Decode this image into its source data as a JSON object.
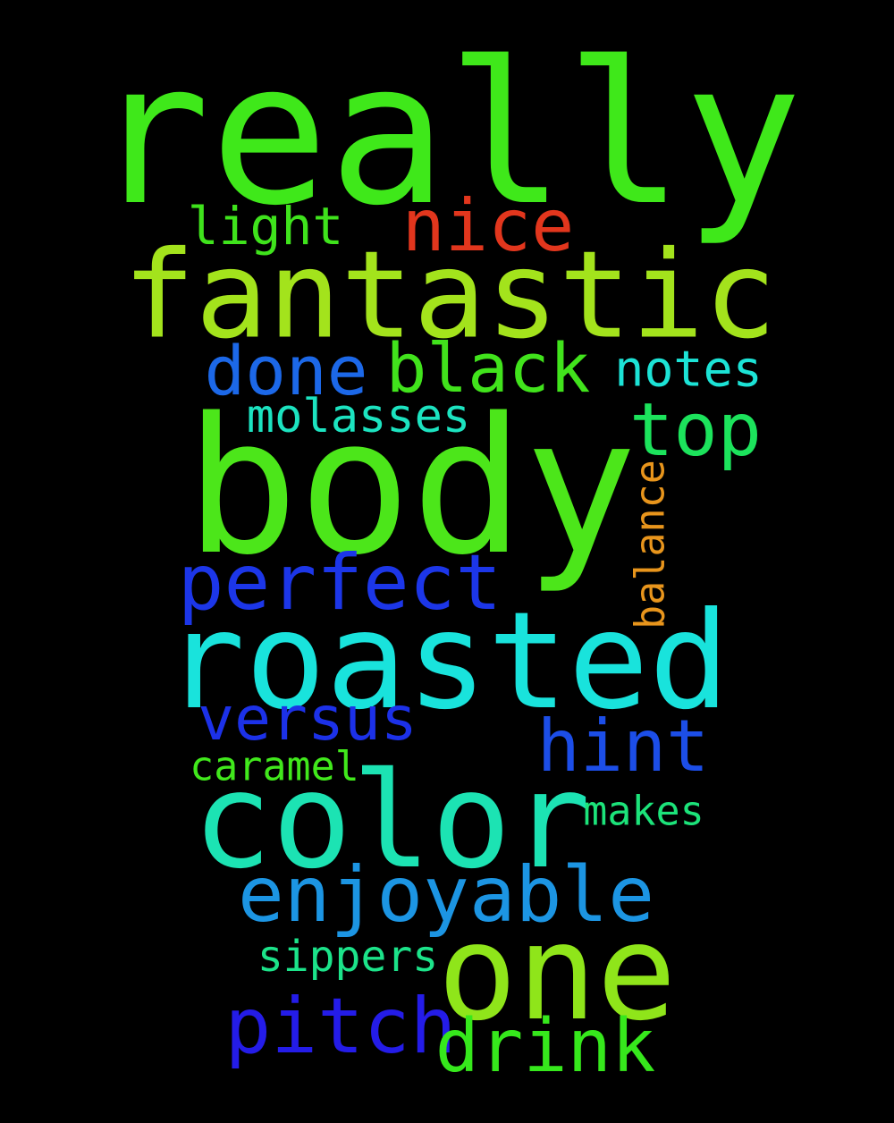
{
  "words": [
    {
      "text": "really",
      "color": "#3fe81a"
    },
    {
      "text": "fantastic",
      "color": "#a3e31c"
    },
    {
      "text": "body",
      "color": "#4ce61a"
    },
    {
      "text": "roasted",
      "color": "#19e3dc"
    },
    {
      "text": "color",
      "color": "#1ce3b3"
    },
    {
      "text": "one",
      "color": "#8fe51a"
    },
    {
      "text": "nice",
      "color": "#e2361d"
    },
    {
      "text": "light",
      "color": "#3fe31c"
    },
    {
      "text": "done",
      "color": "#1c68e8"
    },
    {
      "text": "black",
      "color": "#41e31c"
    },
    {
      "text": "notes",
      "color": "#1ce3d6"
    },
    {
      "text": "molasses",
      "color": "#1ce3c0"
    },
    {
      "text": "top",
      "color": "#1ce35c"
    },
    {
      "text": "balance",
      "color": "#e8951c"
    },
    {
      "text": "perfect",
      "color": "#1c36e8"
    },
    {
      "text": "versus",
      "color": "#1c31e8"
    },
    {
      "text": "hint",
      "color": "#1c4ee8"
    },
    {
      "text": "caramel",
      "color": "#41e81c"
    },
    {
      "text": "makes",
      "color": "#1ce37a"
    },
    {
      "text": "enjoyable",
      "color": "#1c95e3"
    },
    {
      "text": "sippers",
      "color": "#1ce38a"
    },
    {
      "text": "pitch",
      "color": "#241ce8"
    },
    {
      "text": "drink",
      "color": "#36e81c"
    }
  ]
}
